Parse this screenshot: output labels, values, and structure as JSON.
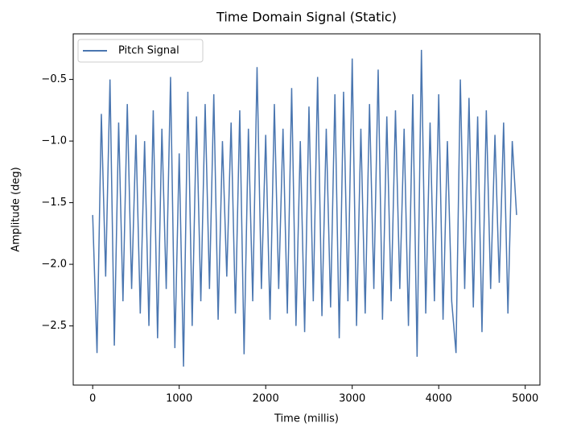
{
  "chart_data": {
    "type": "line",
    "title": "Time Domain Signal (Static)",
    "x_label": "Time (millis)",
    "y_label": "Amplitude (deg)",
    "x": [
      0,
      50,
      100,
      150,
      200,
      250,
      300,
      350,
      400,
      450,
      500,
      550,
      600,
      650,
      700,
      750,
      800,
      850,
      900,
      950,
      1000,
      1050,
      1100,
      1150,
      1200,
      1250,
      1300,
      1350,
      1400,
      1450,
      1500,
      1550,
      1600,
      1650,
      1700,
      1750,
      1800,
      1850,
      1900,
      1950,
      2000,
      2050,
      2100,
      2150,
      2200,
      2250,
      2300,
      2350,
      2400,
      2450,
      2500,
      2550,
      2600,
      2650,
      2700,
      2750,
      2800,
      2850,
      2900,
      2950,
      3000,
      3050,
      3100,
      3150,
      3200,
      3250,
      3300,
      3350,
      3400,
      3450,
      3500,
      3550,
      3600,
      3650,
      3700,
      3750,
      3800,
      3850,
      3900,
      3950,
      4000,
      4050,
      4100,
      4150,
      4200,
      4250,
      4300,
      4350,
      4400,
      4450,
      4500,
      4550,
      4600,
      4650,
      4700,
      4750,
      4800,
      4850,
      4900
    ],
    "series": [
      {
        "name": "Pitch Signal",
        "color": "#4a76b0",
        "values": [
          -1.6,
          -2.72,
          -0.78,
          -2.1,
          -0.5,
          -2.66,
          -0.85,
          -2.3,
          -0.7,
          -2.2,
          -0.95,
          -2.4,
          -1.0,
          -2.5,
          -0.75,
          -2.6,
          -0.9,
          -2.2,
          -0.48,
          -2.68,
          -1.1,
          -2.83,
          -0.6,
          -2.5,
          -0.8,
          -2.3,
          -0.7,
          -2.2,
          -0.62,
          -2.45,
          -1.0,
          -2.1,
          -0.85,
          -2.4,
          -0.75,
          -2.73,
          -0.9,
          -2.3,
          -0.4,
          -2.2,
          -0.95,
          -2.45,
          -0.7,
          -2.2,
          -0.9,
          -2.4,
          -0.57,
          -2.5,
          -1.0,
          -2.55,
          -0.72,
          -2.3,
          -0.48,
          -2.42,
          -0.9,
          -2.35,
          -0.62,
          -2.6,
          -0.6,
          -2.3,
          -0.33,
          -2.5,
          -0.9,
          -2.4,
          -0.7,
          -2.2,
          -0.42,
          -2.45,
          -0.8,
          -2.3,
          -0.75,
          -2.2,
          -0.9,
          -2.5,
          -0.62,
          -2.75,
          -0.26,
          -2.4,
          -0.85,
          -2.3,
          -0.62,
          -2.45,
          -1.0,
          -2.3,
          -2.72,
          -0.5,
          -2.2,
          -0.65,
          -2.35,
          -0.8,
          -2.55,
          -0.75,
          -2.2,
          -0.95,
          -2.15,
          -0.85,
          -2.4,
          -1.0,
          -1.6
        ]
      }
    ],
    "xlim": [
      -225,
      5170
    ],
    "ylim": [
      -2.98,
      -0.13
    ],
    "xticks": [
      0,
      1000,
      2000,
      3000,
      4000,
      5000
    ],
    "yticks": [
      {
        "value": -2.5,
        "label": "−2.5"
      },
      {
        "value": -2.0,
        "label": "−2.0"
      },
      {
        "value": -1.5,
        "label": "−1.5"
      },
      {
        "value": -1.0,
        "label": "−1.0"
      },
      {
        "value": -0.5,
        "label": "−0.5"
      }
    ],
    "legend": "upper left"
  }
}
